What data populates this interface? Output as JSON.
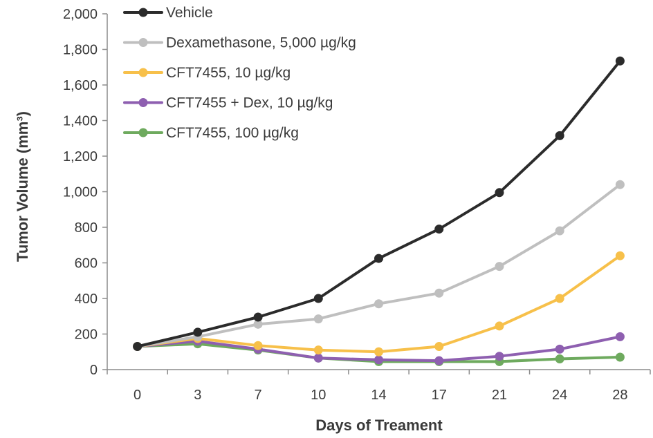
{
  "chart_data": {
    "type": "line",
    "title": "",
    "xlabel": "Days of Treament",
    "ylabel": "Tumor Volume (mm³)",
    "x": [
      0,
      3,
      7,
      10,
      14,
      17,
      21,
      24,
      28
    ],
    "x_tick_labels": [
      "0",
      "3",
      "7",
      "10",
      "14",
      "17",
      "21",
      "24",
      "28"
    ],
    "ylim": [
      0,
      2000
    ],
    "y_ticks": [
      0,
      200,
      400,
      600,
      800,
      1000,
      1200,
      1400,
      1600,
      1800,
      2000
    ],
    "y_tick_labels": [
      "0",
      "200",
      "400",
      "600",
      "800",
      "1,000",
      "1,200",
      "1,400",
      "1,600",
      "1,800",
      "2,000"
    ],
    "grid": false,
    "legend_position": "top-left",
    "series": [
      {
        "name": "Vehicle",
        "color": "#2b2b2b",
        "values": [
          130,
          210,
          295,
          400,
          625,
          790,
          995,
          1315,
          1735
        ]
      },
      {
        "name": "Dexamethasone, 5,000 µg/kg",
        "color": "#bfbfbf",
        "values": [
          130,
          185,
          255,
          285,
          370,
          430,
          580,
          780,
          1040
        ]
      },
      {
        "name": "CFT7455, 10 µg/kg",
        "color": "#f7c04a",
        "values": [
          130,
          175,
          135,
          110,
          100,
          130,
          245,
          400,
          640
        ]
      },
      {
        "name": "CFT7455 + Dex, 10 µg/kg",
        "color": "#8e5fb0",
        "values": [
          130,
          160,
          115,
          65,
          55,
          50,
          75,
          115,
          185
        ]
      },
      {
        "name": "CFT7455, 100 µg/kg",
        "color": "#6eaa5e",
        "values": [
          130,
          145,
          110,
          65,
          45,
          45,
          45,
          60,
          70
        ]
      }
    ]
  }
}
